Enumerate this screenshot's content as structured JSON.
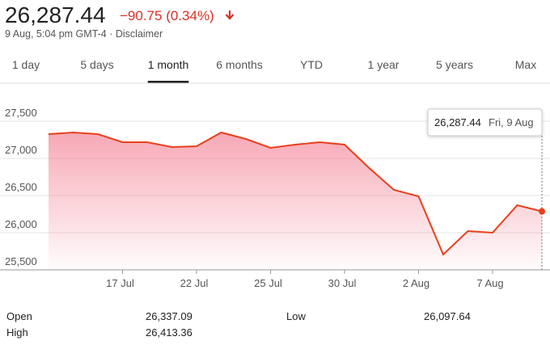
{
  "header": {
    "price": "26,287.44",
    "change": "−90.75 (0.34%)",
    "timestamp": "9 Aug, 5:04 pm GMT-4 · Disclaimer"
  },
  "tabs": [
    "1 day",
    "5 days",
    "1 month",
    "6 months",
    "YTD",
    "1 year",
    "5 years",
    "Max"
  ],
  "selected_tab": 2,
  "chart_data": {
    "type": "line",
    "categories": [
      null,
      null,
      null,
      "17 Jul",
      null,
      null,
      "22 Jul",
      null,
      null,
      "25 Jul",
      null,
      null,
      "30 Jul",
      null,
      null,
      "2 Aug",
      null,
      null,
      "7 Aug",
      null,
      null
    ],
    "values": [
      27326,
      27348,
      27326,
      27217,
      27217,
      27152,
      27163,
      27348,
      27261,
      27141,
      27185,
      27217,
      27185,
      26870,
      26576,
      26489,
      25707,
      26022,
      26000,
      26370,
      26287.44
    ],
    "color": "#e8401c",
    "ylim": [
      25500,
      27850
    ],
    "yticks": [
      {
        "value": 25500,
        "label": "25,500"
      },
      {
        "value": 26000,
        "label": "26,000"
      },
      {
        "value": 26500,
        "label": "26,500"
      },
      {
        "value": 27000,
        "label": "27,000"
      },
      {
        "value": 27500,
        "label": "27,500"
      }
    ],
    "grid": true,
    "tooltip": {
      "value": "26,287.44",
      "date": "Fri, 9 Aug"
    }
  },
  "stats": [
    [
      "Open",
      "26,337.09",
      "Low",
      "26,097.64"
    ],
    [
      "High",
      "26,413.36"
    ]
  ]
}
